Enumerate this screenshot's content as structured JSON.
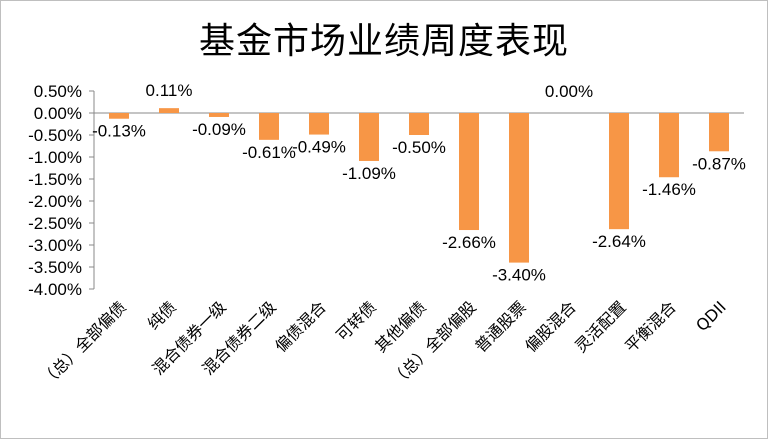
{
  "chart_data": {
    "type": "bar",
    "title": "基金市场业绩周度表现",
    "xlabel": "",
    "ylabel": "",
    "categories": [
      "（总）全部偏债",
      "纯债",
      "混合债券一级",
      "混合债券二级",
      "偏债混合",
      "可转债",
      "其他偏债",
      "（总）全部偏股",
      "普通股票",
      "偏股混合",
      "灵活配置",
      "平衡混合",
      "QDII"
    ],
    "values": [
      -0.13,
      0.11,
      -0.09,
      -0.61,
      -0.49,
      -1.09,
      -0.5,
      -2.66,
      -3.4,
      0.0,
      -2.64,
      -1.46,
      -0.87
    ],
    "data_labels": [
      "-0.13%",
      "0.11%",
      "-0.09%",
      "-0.61%",
      "-0.49%",
      "-1.09%",
      "-0.50%",
      "-2.66%",
      "-3.40%",
      "0.00%",
      "-2.64%",
      "-1.46%",
      "-0.87%"
    ],
    "ylim": [
      -4.0,
      0.5
    ],
    "y_ticks": [
      "0.50%",
      "0.00%",
      "-0.50%",
      "-1.00%",
      "-1.50%",
      "-2.00%",
      "-2.50%",
      "-3.00%",
      "-3.50%",
      "-4.00%"
    ],
    "grid": false,
    "legend": "none",
    "bar_color": "#f79646"
  }
}
